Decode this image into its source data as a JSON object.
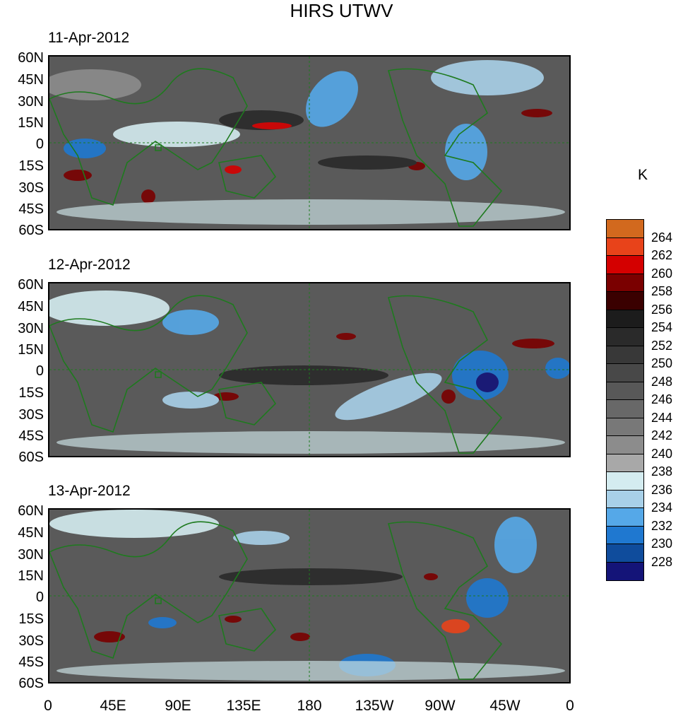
{
  "title": "HIRS UTWV",
  "unit": "K",
  "panels": [
    {
      "date": "11-Apr-2012"
    },
    {
      "date": "12-Apr-2012"
    },
    {
      "date": "13-Apr-2012"
    }
  ],
  "lat_labels": [
    "60N",
    "45N",
    "30N",
    "15N",
    "0",
    "15S",
    "30S",
    "45S",
    "60S"
  ],
  "lon_labels": [
    "0",
    "45E",
    "90E",
    "135E",
    "180",
    "135W",
    "90W",
    "45W",
    "0"
  ],
  "colorbar": {
    "levels": [
      "264",
      "262",
      "260",
      "258",
      "256",
      "254",
      "252",
      "250",
      "248",
      "246",
      "244",
      "242",
      "240",
      "238",
      "236",
      "234",
      "232",
      "230",
      "228"
    ],
    "colors": [
      "#d2691e",
      "#e8431a",
      "#d40000",
      "#7a0000",
      "#3a0000",
      "#1c1c1c",
      "#2a2a2a",
      "#383838",
      "#484848",
      "#585858",
      "#686868",
      "#787878",
      "#8c8c8c",
      "#a8a8a8",
      "#d4ecf0",
      "#a8d0e8",
      "#55a8e8",
      "#1f78d0",
      "#0f4c9c",
      "#141478"
    ]
  },
  "coastline_color": "#1e7a1e"
}
